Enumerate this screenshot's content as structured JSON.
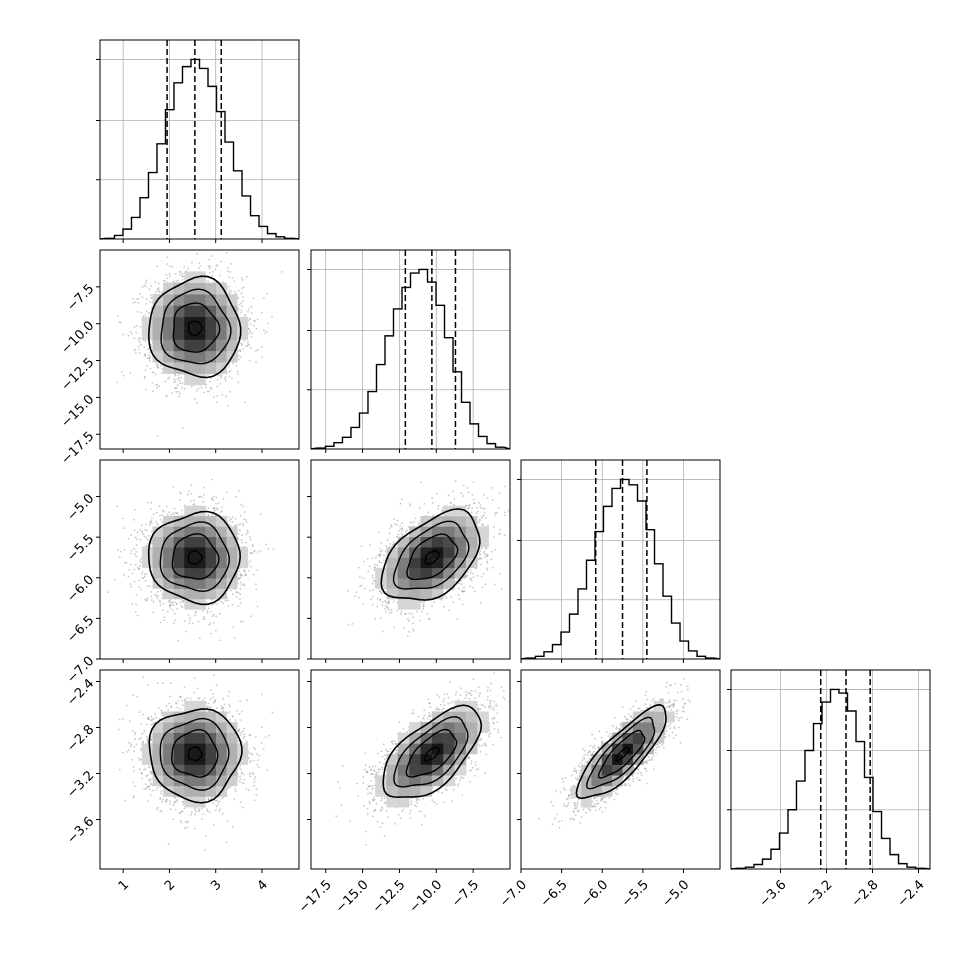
{
  "chart_data": {
    "type": "corner",
    "title": "",
    "parameters": [
      {
        "label": "",
        "range": [
          0.5,
          4.8
        ],
        "ticks": [
          "1",
          "2",
          "3",
          "4"
        ],
        "quantiles": [
          1.95,
          2.55,
          3.12
        ]
      },
      {
        "label": "",
        "range": [
          -18.5,
          -5.0
        ],
        "ticks": [
          "−17.5",
          "−15.0",
          "−12.5",
          "−10.0",
          "−7.5"
        ],
        "tick_values": [
          -17.5,
          -15.0,
          -12.5,
          -10.0,
          -7.5
        ],
        "quantiles": [
          -12.1,
          -10.3,
          -8.7
        ]
      },
      {
        "label": "",
        "range": [
          -7.0,
          -4.55
        ],
        "ticks": [
          "−7.0",
          "−6.5",
          "−6.0",
          "−5.5",
          "−5.0"
        ],
        "tick_values": [
          -7.0,
          -6.5,
          -6.0,
          -5.5,
          -5.0
        ],
        "quantiles": [
          -6.08,
          -5.75,
          -5.45
        ]
      },
      {
        "label": "",
        "range": [
          -4.03,
          -2.3
        ],
        "ticks": [
          "−3.6",
          "−3.2",
          "−2.8",
          "−2.4"
        ],
        "tick_values": [
          -3.6,
          -3.2,
          -2.8,
          -2.4
        ],
        "quantiles": [
          -3.25,
          -3.03,
          -2.82
        ]
      }
    ],
    "histograms": [
      [
        0.004,
        0.02,
        0.055,
        0.12,
        0.23,
        0.37,
        0.53,
        0.72,
        0.87,
        0.96,
        1.0,
        0.95,
        0.85,
        0.71,
        0.54,
        0.38,
        0.24,
        0.13,
        0.07,
        0.03,
        0.012,
        0.004
      ],
      [
        0.005,
        0.015,
        0.035,
        0.065,
        0.12,
        0.2,
        0.32,
        0.47,
        0.63,
        0.78,
        0.9,
        0.98,
        1.0,
        0.93,
        0.8,
        0.62,
        0.43,
        0.26,
        0.14,
        0.07,
        0.03,
        0.01
      ],
      [
        0.005,
        0.015,
        0.04,
        0.08,
        0.15,
        0.25,
        0.39,
        0.55,
        0.71,
        0.85,
        0.95,
        1.0,
        0.97,
        0.88,
        0.72,
        0.53,
        0.35,
        0.2,
        0.1,
        0.045,
        0.015,
        0.005
      ],
      [
        0.004,
        0.01,
        0.025,
        0.055,
        0.11,
        0.2,
        0.33,
        0.49,
        0.66,
        0.81,
        0.93,
        1.0,
        0.98,
        0.88,
        0.71,
        0.51,
        0.32,
        0.17,
        0.08,
        0.03,
        0.01,
        0.004
      ]
    ],
    "pairs": [
      {
        "row": 1,
        "col": 0,
        "mean": [
          2.55,
          -10.3
        ],
        "sd": [
          0.52,
          1.75
        ],
        "corr": 0.0
      },
      {
        "row": 2,
        "col": 0,
        "mean": [
          2.55,
          -5.75
        ],
        "sd": [
          0.52,
          0.29
        ],
        "corr": 0.0
      },
      {
        "row": 2,
        "col": 1,
        "mean": [
          -10.3,
          -5.75
        ],
        "sd": [
          1.75,
          0.29
        ],
        "corr": 0.45
      },
      {
        "row": 3,
        "col": 0,
        "mean": [
          2.55,
          -3.03
        ],
        "sd": [
          0.52,
          0.21
        ],
        "corr": 0.0
      },
      {
        "row": 3,
        "col": 1,
        "mean": [
          -10.3,
          -3.03
        ],
        "sd": [
          1.75,
          0.21
        ],
        "corr": 0.62
      },
      {
        "row": 3,
        "col": 2,
        "mean": [
          -5.75,
          -3.03
        ],
        "sd": [
          0.29,
          0.21
        ],
        "corr": 0.82
      }
    ],
    "grid": true,
    "style": {
      "line": "#000000",
      "grid": "#b0b0b0",
      "points": "#9a9a9a",
      "axis": "#000000"
    }
  }
}
